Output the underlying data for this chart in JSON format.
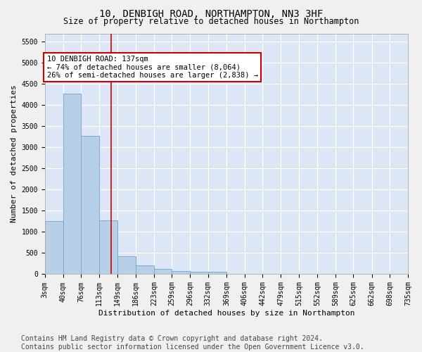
{
  "title": "10, DENBIGH ROAD, NORTHAMPTON, NN3 3HF",
  "subtitle": "Size of property relative to detached houses in Northampton",
  "xlabel": "Distribution of detached houses by size in Northampton",
  "ylabel": "Number of detached properties",
  "bar_color": "#b8cfe8",
  "bar_edge_color": "#7aaad0",
  "background_color": "#dce6f5",
  "grid_color": "#ffffff",
  "annotation_line_color": "#cc0000",
  "annotation_box_color": "#cc0000",
  "annotation_text_line1": "10 DENBIGH ROAD: 137sqm",
  "annotation_text_line2": "← 74% of detached houses are smaller (8,064)",
  "annotation_text_line3": "26% of semi-detached houses are larger (2,838) →",
  "property_size": 137,
  "bin_edges": [
    3,
    40,
    76,
    113,
    149,
    186,
    223,
    259,
    296,
    332,
    369,
    406,
    442,
    479,
    515,
    552,
    589,
    625,
    662,
    698,
    735
  ],
  "categories": [
    "3sqm",
    "40sqm",
    "76sqm",
    "113sqm",
    "149sqm",
    "186sqm",
    "223sqm",
    "259sqm",
    "296sqm",
    "332sqm",
    "369sqm",
    "406sqm",
    "442sqm",
    "479sqm",
    "515sqm",
    "552sqm",
    "589sqm",
    "625sqm",
    "662sqm",
    "698sqm",
    "735sqm"
  ],
  "values": [
    1250,
    4280,
    3280,
    1280,
    430,
    200,
    120,
    70,
    50,
    50,
    0,
    0,
    0,
    0,
    0,
    0,
    0,
    0,
    0,
    0
  ],
  "ylim": [
    0,
    5700
  ],
  "yticks": [
    0,
    500,
    1000,
    1500,
    2000,
    2500,
    3000,
    3500,
    4000,
    4500,
    5000,
    5500
  ],
  "fig_width": 6.0,
  "fig_height": 5.0,
  "footer": "Contains HM Land Registry data © Crown copyright and database right 2024.\nContains public sector information licensed under the Open Government Licence v3.0.",
  "footer_fontsize": 7.0,
  "title_fontsize": 10,
  "subtitle_fontsize": 8.5,
  "axis_label_fontsize": 8,
  "tick_fontsize": 7
}
